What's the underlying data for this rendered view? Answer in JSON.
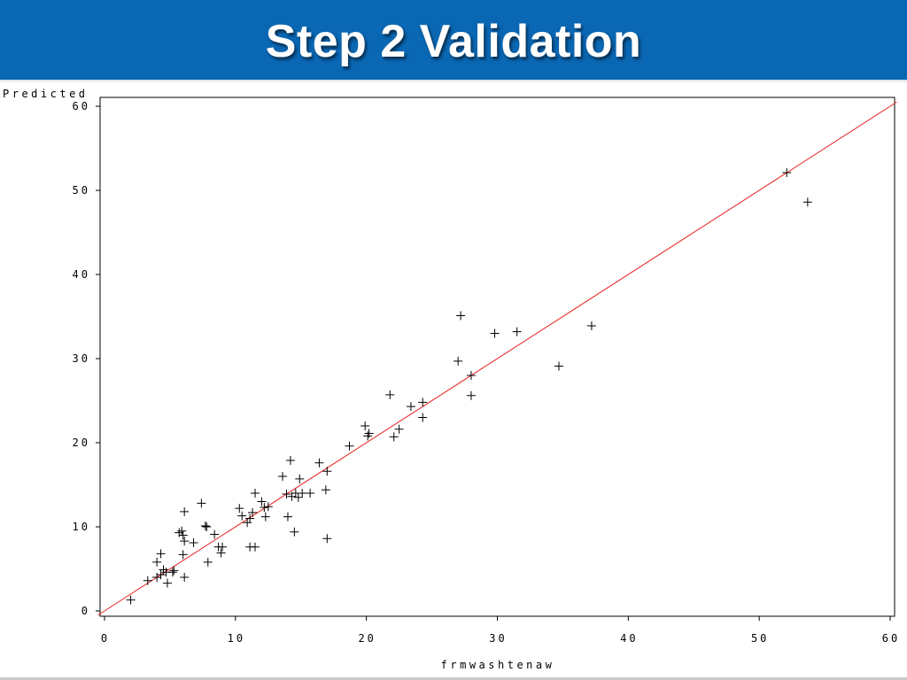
{
  "slide": {
    "title": "Step 2 Validation"
  },
  "colors": {
    "title_bar": "#0a67b3",
    "title_text": "#ffffff",
    "reference_line": "#e8231f",
    "markers": "#000000"
  },
  "chart_data": {
    "type": "scatter",
    "xlabel": "frmwashtenaw",
    "ylabel": "Predicted",
    "xlim": [
      0,
      60
    ],
    "ylim": [
      0,
      60
    ],
    "xticks": [
      "0",
      "10",
      "20",
      "30",
      "40",
      "50",
      "60"
    ],
    "yticks": [
      "0",
      "10",
      "20",
      "30",
      "40",
      "50",
      "60"
    ],
    "marker": "plus",
    "grid": false,
    "reference_line": {
      "from": [
        -0.5,
        -0.5
      ],
      "to": [
        60.5,
        60.5
      ]
    },
    "points": [
      [
        2.0,
        1.3
      ],
      [
        3.3,
        3.6
      ],
      [
        4.0,
        4.0
      ],
      [
        4.0,
        5.8
      ],
      [
        4.3,
        4.3
      ],
      [
        4.3,
        6.8
      ],
      [
        4.5,
        4.9
      ],
      [
        4.7,
        4.6
      ],
      [
        4.8,
        3.3
      ],
      [
        5.2,
        4.6
      ],
      [
        5.3,
        4.8
      ],
      [
        5.7,
        9.3
      ],
      [
        5.9,
        9.5
      ],
      [
        6.0,
        6.7
      ],
      [
        6.0,
        9.0
      ],
      [
        6.1,
        11.8
      ],
      [
        6.1,
        8.3
      ],
      [
        6.1,
        4.0
      ],
      [
        6.8,
        8.1
      ],
      [
        7.4,
        12.8
      ],
      [
        7.7,
        10.1
      ],
      [
        7.8,
        10.0
      ],
      [
        7.9,
        5.8
      ],
      [
        8.4,
        9.1
      ],
      [
        8.7,
        7.6
      ],
      [
        8.9,
        6.9
      ],
      [
        9.0,
        7.6
      ],
      [
        10.3,
        12.2
      ],
      [
        10.5,
        11.3
      ],
      [
        10.9,
        10.5
      ],
      [
        11.1,
        11.0
      ],
      [
        11.1,
        7.6
      ],
      [
        11.3,
        11.7
      ],
      [
        11.5,
        7.6
      ],
      [
        11.5,
        14.0
      ],
      [
        12.0,
        13.0
      ],
      [
        12.2,
        12.3
      ],
      [
        12.3,
        11.2
      ],
      [
        12.5,
        12.4
      ],
      [
        13.6,
        16.0
      ],
      [
        13.9,
        13.9
      ],
      [
        14.0,
        11.2
      ],
      [
        14.2,
        17.9
      ],
      [
        14.3,
        13.6
      ],
      [
        14.5,
        9.4
      ],
      [
        14.6,
        14.0
      ],
      [
        14.8,
        13.5
      ],
      [
        14.9,
        15.7
      ],
      [
        15.1,
        14.0
      ],
      [
        15.7,
        14.0
      ],
      [
        16.4,
        17.6
      ],
      [
        16.9,
        14.4
      ],
      [
        17.0,
        16.6
      ],
      [
        17.0,
        8.6
      ],
      [
        18.7,
        19.6
      ],
      [
        19.9,
        22.0
      ],
      [
        20.1,
        20.8
      ],
      [
        20.2,
        21.1
      ],
      [
        21.8,
        25.7
      ],
      [
        22.1,
        20.7
      ],
      [
        22.5,
        21.6
      ],
      [
        23.4,
        24.3
      ],
      [
        24.3,
        24.8
      ],
      [
        24.3,
        23.0
      ],
      [
        27.0,
        29.7
      ],
      [
        27.2,
        35.1
      ],
      [
        28.0,
        28.0
      ],
      [
        28.0,
        25.6
      ],
      [
        29.8,
        33.0
      ],
      [
        31.5,
        33.2
      ],
      [
        34.7,
        29.1
      ],
      [
        37.2,
        33.9
      ],
      [
        52.1,
        52.1
      ],
      [
        53.7,
        48.6
      ]
    ]
  }
}
